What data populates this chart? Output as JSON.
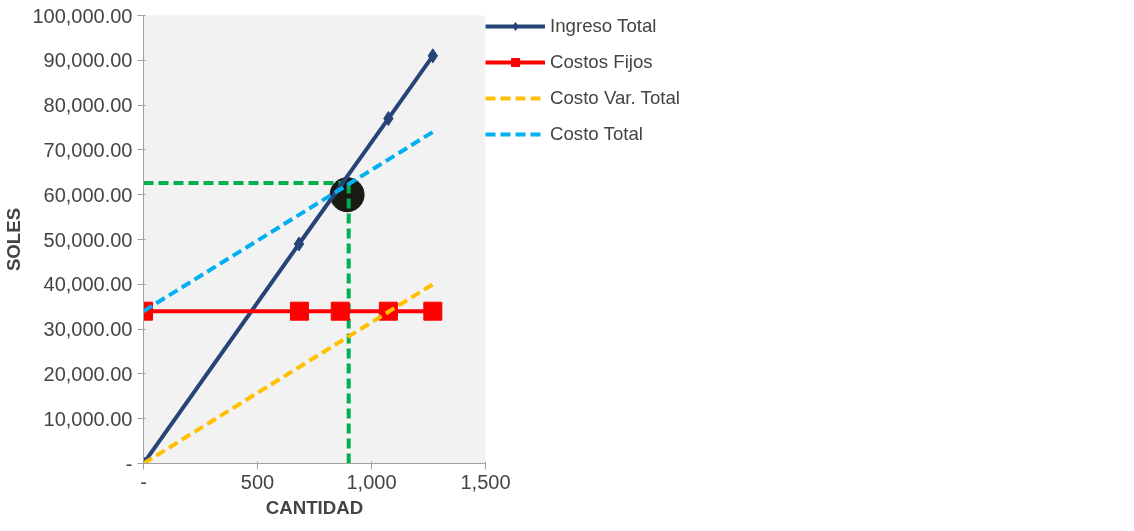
{
  "chart_data": {
    "type": "line",
    "xlabel": "CANTIDAD",
    "ylabel": "SOLES",
    "xlim": [
      0,
      1500
    ],
    "xticks": [
      {
        "value": 0,
        "label": "-"
      },
      500,
      {
        "value": 1000,
        "label": "1,000"
      },
      {
        "value": 1500,
        "label": "1,500"
      }
    ],
    "ylim": [
      0,
      100000
    ],
    "yticks": [
      {
        "value": 0,
        "label": "-"
      },
      {
        "value": 10000,
        "label": "10,000.00"
      },
      {
        "value": 20000,
        "label": "20,000.00"
      },
      {
        "value": 30000,
        "label": "30,000.00"
      },
      {
        "value": 40000,
        "label": "40,000.00"
      },
      {
        "value": 50000,
        "label": "50,000.00"
      },
      {
        "value": 60000,
        "label": "60,000.00"
      },
      {
        "value": 70000,
        "label": "70,000.00"
      },
      {
        "value": 80000,
        "label": "80,000.00"
      },
      {
        "value": 90000,
        "label": "90,000.00"
      },
      {
        "value": 100000,
        "label": "100,000.00"
      }
    ],
    "grid": false,
    "legend": "right",
    "series": [
      {
        "type": "scatter",
        "color": "#1a1a12",
        "marker": "circle",
        "x": [
          893
        ],
        "values": [
          60000
        ]
      },
      {
        "color": "#00b050",
        "line_style": "dashed",
        "marker": "none",
        "x": [
          0,
          875
        ],
        "values": [
          62600,
          62600
        ]
      },
      {
        "color": "#00b050",
        "line_style": "dashed",
        "marker": "none",
        "x": [
          900,
          900
        ],
        "values": [
          0,
          62600
        ]
      },
      {
        "name": "Ingreso Total",
        "color": "#264478",
        "line_style": "solid",
        "marker": "diamond",
        "x": [
          0,
          682,
          1074,
          1269
        ],
        "values": [
          0,
          49000,
          77000,
          91000
        ]
      },
      {
        "name": "Costos Fijos",
        "color": "#ff0000",
        "line_style": "solid",
        "marker": "square",
        "x": [
          0,
          684,
          863,
          1074,
          1269
        ],
        "values": [
          34000,
          34000,
          34000,
          34000,
          34000
        ]
      },
      {
        "name": "Costo Var. Total",
        "color": "#ffc000",
        "line_style": "dashed",
        "marker": "none",
        "x": [
          0,
          1269
        ],
        "values": [
          0,
          40000
        ]
      },
      {
        "name": "Costo Total",
        "color": "#00b0f0",
        "line_style": "dashed",
        "marker": "none",
        "x": [
          0,
          1269
        ],
        "values": [
          34000,
          74000
        ]
      }
    ]
  }
}
